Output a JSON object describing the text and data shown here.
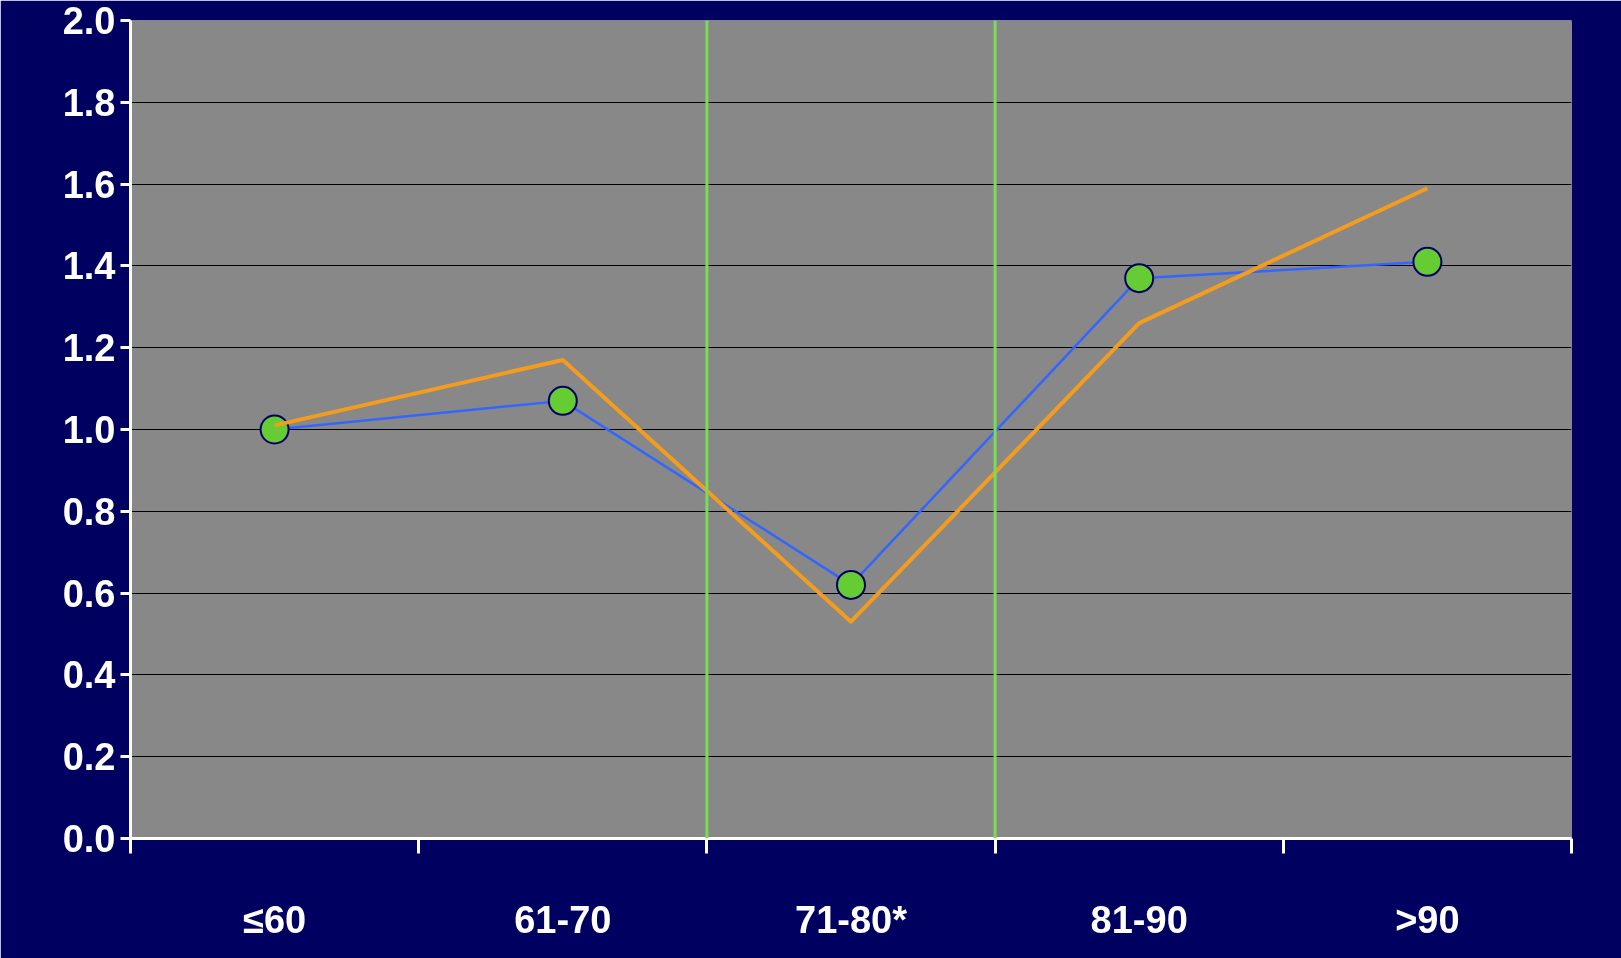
{
  "chart_data": {
    "type": "line",
    "categories": [
      "≤60",
      "61-70",
      "71-80*",
      "81-90",
      ">90"
    ],
    "series": [
      {
        "color": "#3366ff",
        "values": [
          1.0,
          1.07,
          0.62,
          1.37,
          1.41
        ],
        "marker": "circle"
      },
      {
        "color": "#f39c1e",
        "marker": "none",
        "values": [
          1.01,
          1.17,
          0.53,
          1.26,
          1.59
        ]
      }
    ],
    "ylim": [
      0,
      2.0
    ],
    "yticks": [
      {
        "value": 0,
        "label": "0.0"
      },
      {
        "value": 0.2,
        "label": "0.2"
      },
      {
        "value": 0.4,
        "label": "0.4"
      },
      {
        "value": 0.6,
        "label": "0.6"
      },
      {
        "value": 0.8,
        "label": "0.8"
      },
      {
        "value": 1.0,
        "label": "1.0"
      },
      {
        "value": 1.2,
        "label": "1.2"
      },
      {
        "value": 1.4,
        "label": "1.4"
      },
      {
        "value": 1.6,
        "label": "1.6"
      },
      {
        "value": 1.8,
        "label": "1.8"
      },
      {
        "value": 2.0,
        "label": "2.0"
      }
    ],
    "grid": "y"
  }
}
